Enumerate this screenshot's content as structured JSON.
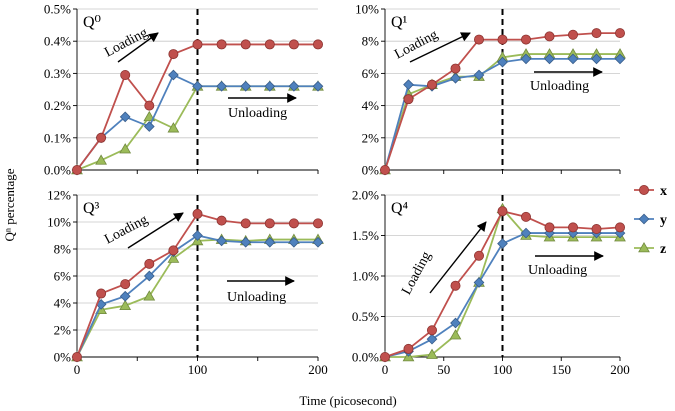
{
  "figure": {
    "ylabel": "Qⁿ percentage",
    "xlabel": "Time (picosecond)",
    "loading_label": "Loading",
    "unloading_label": "Unloading",
    "divider_x": 100,
    "colors": {
      "x": "#c0504d",
      "y": "#4f81bd",
      "z": "#9bbb59"
    }
  },
  "legend": [
    {
      "key": "x",
      "label": "x",
      "marker": "circle"
    },
    {
      "key": "y",
      "label": "y",
      "marker": "diamond"
    },
    {
      "key": "z",
      "label": "z",
      "marker": "triangle"
    }
  ],
  "chart_data": [
    {
      "type": "line",
      "title": "Q⁰",
      "x": [
        0,
        20,
        40,
        60,
        80,
        100,
        120,
        140,
        160,
        180,
        200
      ],
      "xlim": [
        0,
        200
      ],
      "ylim": [
        0,
        0.5
      ],
      "yticks": [
        0,
        0.1,
        0.2,
        0.3,
        0.4,
        0.5
      ],
      "ytick_labels": [
        "0.0%",
        "0.1%",
        "0.2%",
        "0.3%",
        "0.4%",
        "0.5%"
      ],
      "xticks": [],
      "xtick_labels": [],
      "series": [
        {
          "name": "x",
          "values": [
            0,
            0.1,
            0.295,
            0.2,
            0.36,
            0.39,
            0.39,
            0.39,
            0.39,
            0.39,
            0.39
          ]
        },
        {
          "name": "y",
          "values": [
            0,
            0.1,
            0.165,
            0.135,
            0.295,
            0.26,
            0.26,
            0.26,
            0.26,
            0.26,
            0.26
          ]
        },
        {
          "name": "z",
          "values": [
            0,
            0.03,
            0.065,
            0.165,
            0.13,
            0.26,
            0.26,
            0.26,
            0.26,
            0.26,
            0.26
          ]
        }
      ]
    },
    {
      "type": "line",
      "title": "Q¹",
      "x": [
        0,
        20,
        40,
        60,
        80,
        100,
        120,
        140,
        160,
        180,
        200
      ],
      "xlim": [
        0,
        200
      ],
      "ylim": [
        0,
        10
      ],
      "yticks": [
        0,
        2,
        4,
        6,
        8,
        10
      ],
      "ytick_labels": [
        "0%",
        "2%",
        "4%",
        "6%",
        "8%",
        "10%"
      ],
      "xticks": [],
      "xtick_labels": [],
      "series": [
        {
          "name": "x",
          "values": [
            0,
            4.4,
            5.3,
            6.3,
            8.1,
            8.1,
            8.1,
            8.3,
            8.4,
            8.5,
            8.5
          ]
        },
        {
          "name": "y",
          "values": [
            0,
            5.3,
            5.2,
            5.7,
            5.9,
            6.7,
            6.9,
            6.9,
            6.9,
            6.9,
            6.9
          ]
        },
        {
          "name": "z",
          "values": [
            0,
            4.7,
            5.3,
            5.8,
            5.8,
            7.0,
            7.2,
            7.2,
            7.2,
            7.2,
            7.2
          ]
        }
      ]
    },
    {
      "type": "line",
      "title": "Q³",
      "x": [
        0,
        20,
        40,
        60,
        80,
        100,
        120,
        140,
        160,
        180,
        200
      ],
      "xlim": [
        0,
        200
      ],
      "ylim": [
        0,
        12
      ],
      "yticks": [
        0,
        2,
        4,
        6,
        8,
        10,
        12
      ],
      "ytick_labels": [
        "0%",
        "2%",
        "4%",
        "6%",
        "8%",
        "10%",
        "12%"
      ],
      "xticks": [
        0,
        100,
        200
      ],
      "xtick_labels": [
        "0",
        "100",
        "200"
      ],
      "series": [
        {
          "name": "x",
          "values": [
            0,
            4.7,
            5.4,
            6.9,
            7.9,
            10.6,
            10.1,
            9.9,
            9.9,
            9.9,
            9.9
          ]
        },
        {
          "name": "y",
          "values": [
            0,
            3.9,
            4.5,
            6.0,
            7.8,
            9.0,
            8.6,
            8.5,
            8.5,
            8.5,
            8.5
          ]
        },
        {
          "name": "z",
          "values": [
            0,
            3.5,
            3.8,
            4.5,
            7.3,
            8.6,
            8.7,
            8.6,
            8.7,
            8.7,
            8.7
          ]
        }
      ]
    },
    {
      "type": "line",
      "title": "Q⁴",
      "x": [
        0,
        20,
        40,
        60,
        80,
        100,
        120,
        140,
        160,
        180,
        200
      ],
      "xlim": [
        0,
        200
      ],
      "ylim": [
        0,
        2.0
      ],
      "yticks": [
        0,
        0.5,
        1.0,
        1.5,
        2.0
      ],
      "ytick_labels": [
        "0.0%",
        "0.5%",
        "1.0%",
        "1.5%",
        "2.0%"
      ],
      "xticks": [
        0,
        50,
        100,
        150,
        200
      ],
      "xtick_labels": [
        "0",
        "50",
        "100",
        "150",
        "200"
      ],
      "series": [
        {
          "name": "x",
          "values": [
            0,
            0.1,
            0.33,
            0.88,
            1.25,
            1.8,
            1.73,
            1.6,
            1.6,
            1.58,
            1.6
          ]
        },
        {
          "name": "y",
          "values": [
            0,
            0.07,
            0.22,
            0.42,
            0.92,
            1.4,
            1.53,
            1.53,
            1.53,
            1.53,
            1.53
          ]
        },
        {
          "name": "z",
          "values": [
            0,
            0.0,
            0.03,
            0.27,
            0.92,
            1.83,
            1.5,
            1.48,
            1.48,
            1.48,
            1.48
          ]
        }
      ]
    }
  ]
}
